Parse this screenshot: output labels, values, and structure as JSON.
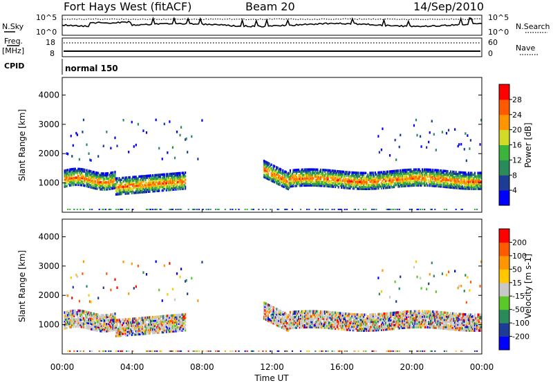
{
  "header": {
    "title": "Fort Hays West (fitACF)",
    "beam": "Beam 20",
    "date": "14/Sep/2010"
  },
  "top_panels": {
    "nsky_label": "N.Sky",
    "nsearch_label": "N.Search",
    "noise_ticks": [
      "10^5",
      "10^0"
    ],
    "freq_label": "Freq.",
    "freq_unit": "[MHz]",
    "freq_ticks": [
      "18",
      "8"
    ],
    "nave_label": "Nave",
    "nave_ticks": [
      "60",
      "0"
    ],
    "cpid_label": "CPID",
    "cpid_value": "normal 150"
  },
  "chart_data": [
    {
      "type": "heatmap",
      "name": "power",
      "ylabel": "Slant Range [km]",
      "ylim": [
        0,
        4600
      ],
      "yticks": [
        "4000",
        "3000",
        "2000",
        "1000"
      ],
      "colorbar_label": "Power [dB]",
      "colorbar_ticks": [
        "28",
        "24",
        "20",
        "16",
        "12",
        "8",
        "4"
      ],
      "colors": [
        "#0000ff",
        "#1e3c96",
        "#2a8a5a",
        "#3cb43c",
        "#d2dc28",
        "#ff9600",
        "#ff5a00",
        "#ff0000"
      ]
    },
    {
      "type": "heatmap",
      "name": "velocity",
      "ylabel": "Slant Range [km]",
      "ylim": [
        0,
        4600
      ],
      "yticks": [
        "4000",
        "3000",
        "2000",
        "1000"
      ],
      "colorbar_label": "Velocity [m s-1]",
      "colorbar_ticks": [
        "200",
        "100",
        "50",
        "15",
        "-15",
        "-50",
        "-100",
        "-200"
      ],
      "colors": [
        "#0000ff",
        "#1e3c96",
        "#2a8a5a",
        "#5ac828",
        "#c8c8c8",
        "#ffc800",
        "#ff9600",
        "#ff5a00",
        "#ff0000"
      ]
    }
  ],
  "x_axis": {
    "label": "Time UT",
    "ticks": [
      "00:00",
      "04:00",
      "08:00",
      "12:00",
      "16:00",
      "20:00",
      "00:00"
    ]
  }
}
